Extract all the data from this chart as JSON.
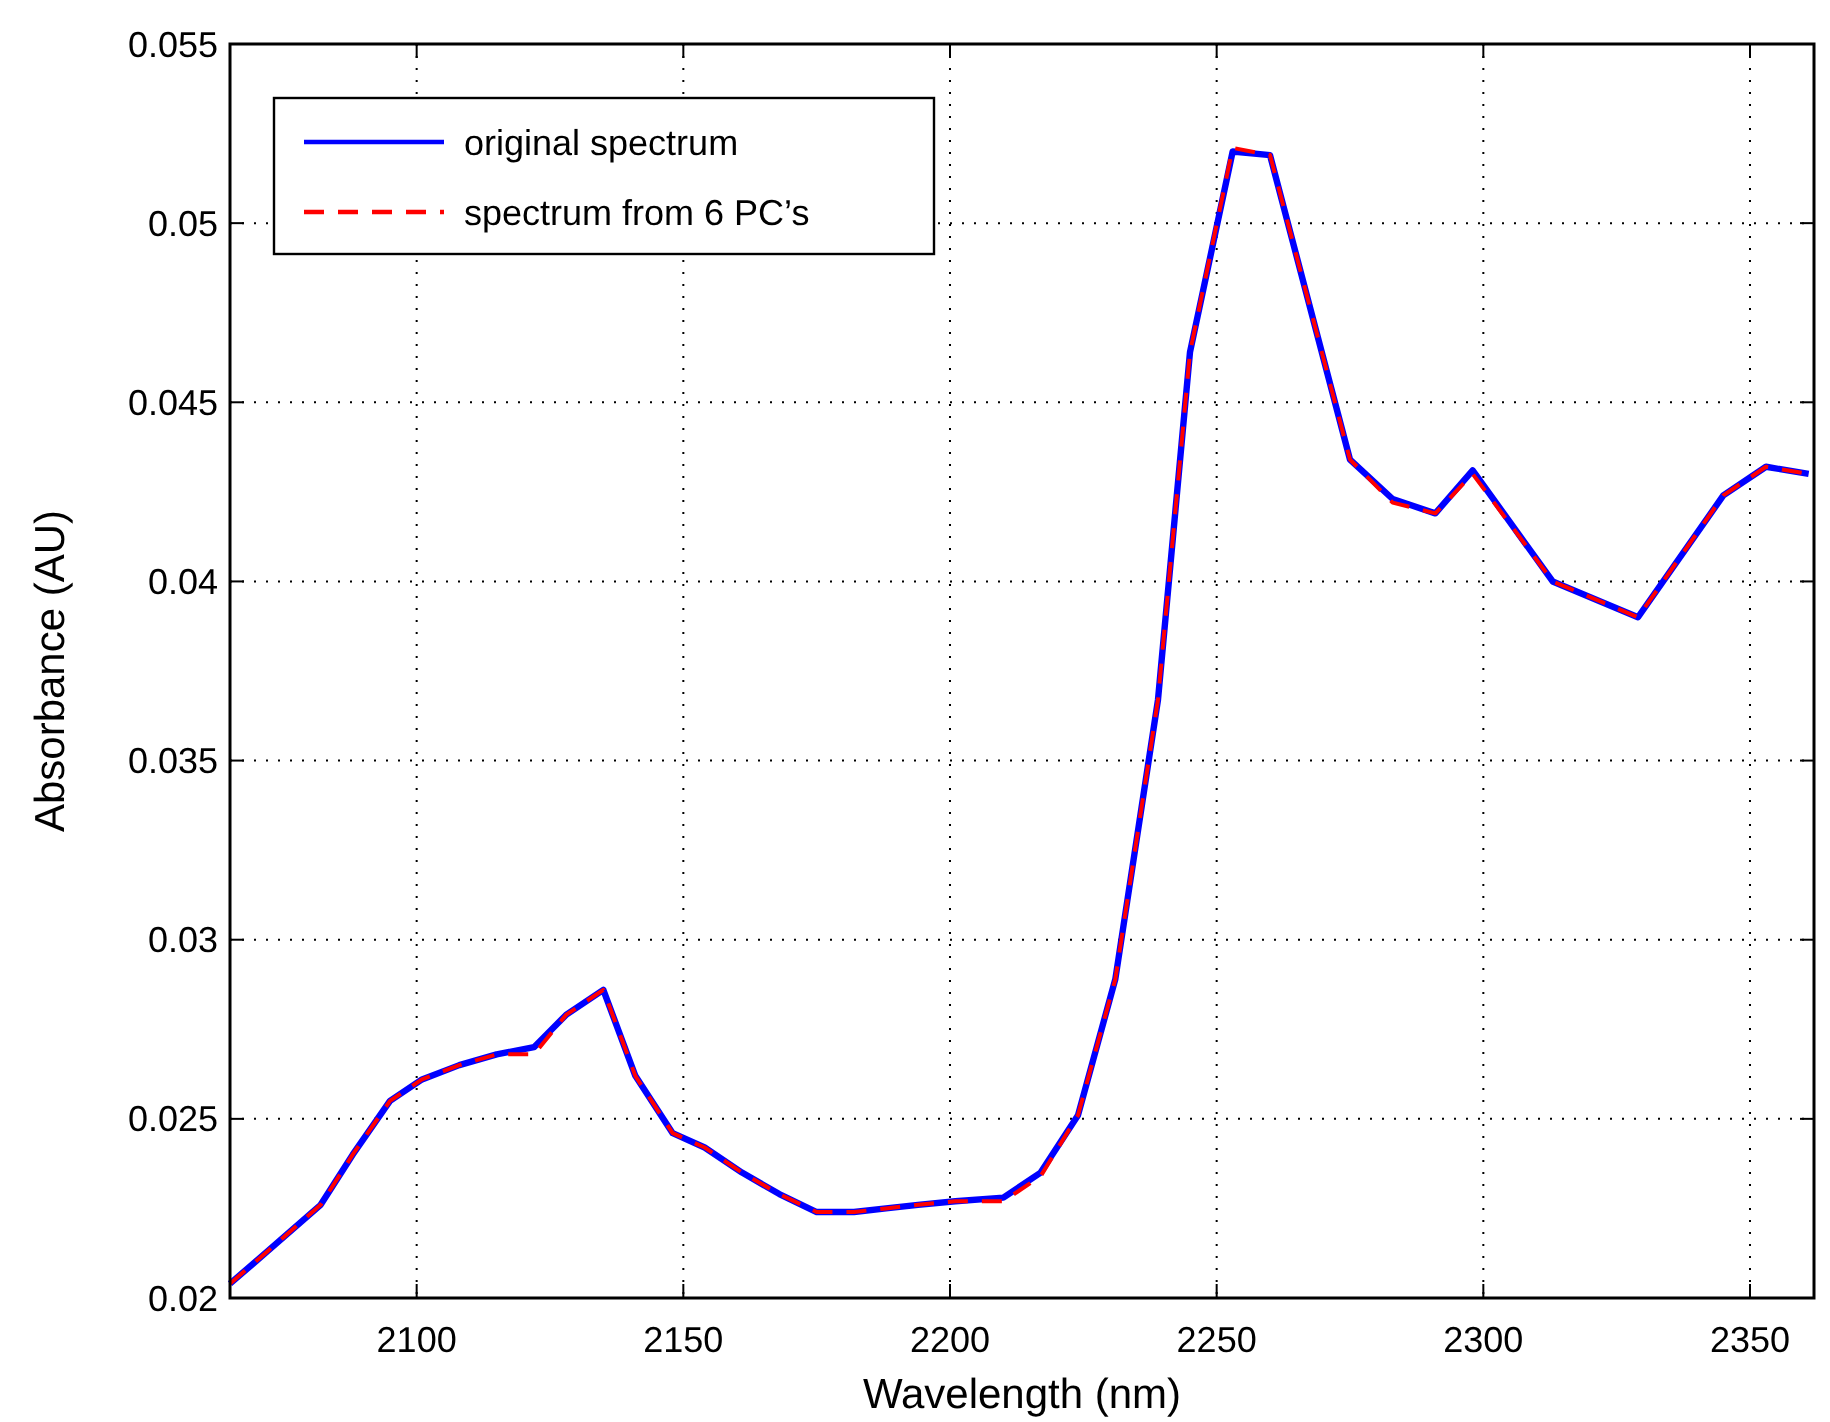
{
  "chart_data": {
    "type": "line",
    "xlabel": "Wavelength (nm)",
    "ylabel": "Absorbance (AU)",
    "x": [
      2065,
      2072,
      2082,
      2088,
      2095,
      2101,
      2108,
      2115,
      2122,
      2128,
      2135,
      2141,
      2148,
      2154,
      2161,
      2168,
      2175,
      2182,
      2188,
      2194,
      2201,
      2210,
      2217,
      2224,
      2231,
      2239,
      2245,
      2253,
      2260,
      2275,
      2283,
      2291,
      2298,
      2313,
      2329,
      2345,
      2353,
      2361
    ],
    "series": [
      {
        "name": "original spectrum",
        "color": "#0000ff",
        "line_style": "solid",
        "values": [
          0.0204,
          0.0213,
          0.0226,
          0.024,
          0.0255,
          0.0261,
          0.0265,
          0.0268,
          0.027,
          0.0279,
          0.0286,
          0.0262,
          0.0246,
          0.0242,
          0.0235,
          0.0229,
          0.0224,
          0.0224,
          0.0225,
          0.0226,
          0.0227,
          0.0228,
          0.0235,
          0.0251,
          0.0289,
          0.0367,
          0.0464,
          0.052,
          0.0519,
          0.0434,
          0.0423,
          0.0419,
          0.0431,
          0.04,
          0.039,
          0.0424,
          0.0432,
          0.043
        ]
      },
      {
        "name": "spectrum from 6 PC’s",
        "color": "#ff0000",
        "line_style": "dashed",
        "values": [
          0.0204,
          0.0213,
          0.0226,
          0.024,
          0.0255,
          0.0261,
          0.0265,
          0.0268,
          0.0268,
          0.0279,
          0.0286,
          0.0262,
          0.0246,
          0.0242,
          0.0235,
          0.0229,
          0.0224,
          0.0224,
          0.0225,
          0.0226,
          0.0227,
          0.0227,
          0.0234,
          0.0251,
          0.0289,
          0.0367,
          0.0464,
          0.0521,
          0.0519,
          0.0434,
          0.0422,
          0.0419,
          0.043,
          0.04,
          0.039,
          0.0424,
          0.0432,
          0.043
        ]
      }
    ],
    "xlim": [
      2065,
      2362
    ],
    "ylim": [
      0.02,
      0.055
    ],
    "xticks": [
      2100,
      2150,
      2200,
      2250,
      2300,
      2350
    ],
    "yticks": [
      0.02,
      0.025,
      0.03,
      0.035,
      0.04,
      0.045,
      0.05,
      0.055
    ],
    "grid": true,
    "legend": "top left"
  }
}
